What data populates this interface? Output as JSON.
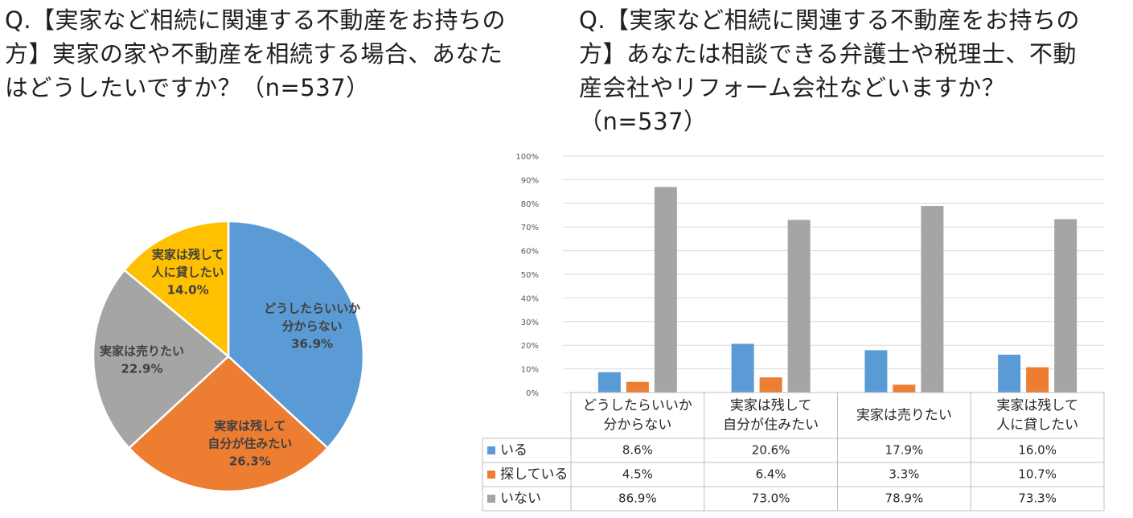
{
  "titles": {
    "left": "Q.【実家など相続に関連する不動産をお持ちの方】実家の家や不動産を相続する場合、あなたはどうしたいですか？（n=537）",
    "right": "Q.【実家など相続に関連する不動産をお持ちの方】あなたは相談できる弁護士や税理士、不動産会社やリフォーム会社などいますか？（n=537）"
  },
  "title_lines": {
    "left": [
      "Q.【実家など相続に関連する不動産をお持ちの",
      "方】実家の家や不動産を相続する場合、あなた",
      "はどうしたいですか？（n=537）"
    ],
    "right": [
      "Q.【実家など相続に関連する不動産をお持ちの",
      "方】あなたは相談できる弁護士や税理士、不動",
      "産会社やリフォーム会社などいますか？",
      "（n=537）"
    ]
  },
  "chart_data": [
    {
      "type": "pie",
      "slices": [
        {
          "label": [
            "どうしたらいいか",
            "分からない"
          ],
          "value": 36.9,
          "value_label": "36.9%",
          "color": "#5b9bd5"
        },
        {
          "label": [
            "実家は残して",
            "自分が住みたい"
          ],
          "value": 26.3,
          "value_label": "26.3%",
          "color": "#ed7d31"
        },
        {
          "label": [
            "実家は売りたい"
          ],
          "value": 22.9,
          "value_label": "22.9%",
          "color": "#a5a5a5"
        },
        {
          "label": [
            "実家は残して",
            "人に貸したい"
          ],
          "value": 14.0,
          "value_label": "14.0%",
          "color": "#ffc000"
        }
      ]
    },
    {
      "type": "bar",
      "categories": [
        [
          "どうしたらいいか",
          "分からない"
        ],
        [
          "実家は残して",
          "自分が住みたい"
        ],
        [
          "実家は売りたい"
        ],
        [
          "実家は残して",
          "人に貸したい"
        ]
      ],
      "series": [
        {
          "name": "いる",
          "color": "#5b9bd5",
          "values": [
            8.6,
            20.6,
            17.9,
            16.0
          ],
          "labels": [
            "8.6%",
            "20.6%",
            "17.9%",
            "16.0%"
          ]
        },
        {
          "name": "探している",
          "color": "#ed7d31",
          "values": [
            4.5,
            6.4,
            3.3,
            10.7
          ],
          "labels": [
            "4.5%",
            "6.4%",
            "3.3%",
            "10.7%"
          ]
        },
        {
          "name": "いない",
          "color": "#a5a5a5",
          "values": [
            86.9,
            73.0,
            78.9,
            73.3
          ],
          "labels": [
            "86.9%",
            "73.0%",
            "78.9%",
            "73.3%"
          ]
        }
      ],
      "ylim": [
        0,
        100
      ],
      "yticks": [
        "0%",
        "10%",
        "20%",
        "30%",
        "40%",
        "50%",
        "60%",
        "70%",
        "80%",
        "90%",
        "100%"
      ],
      "grid": true,
      "legend": "data-table"
    }
  ]
}
